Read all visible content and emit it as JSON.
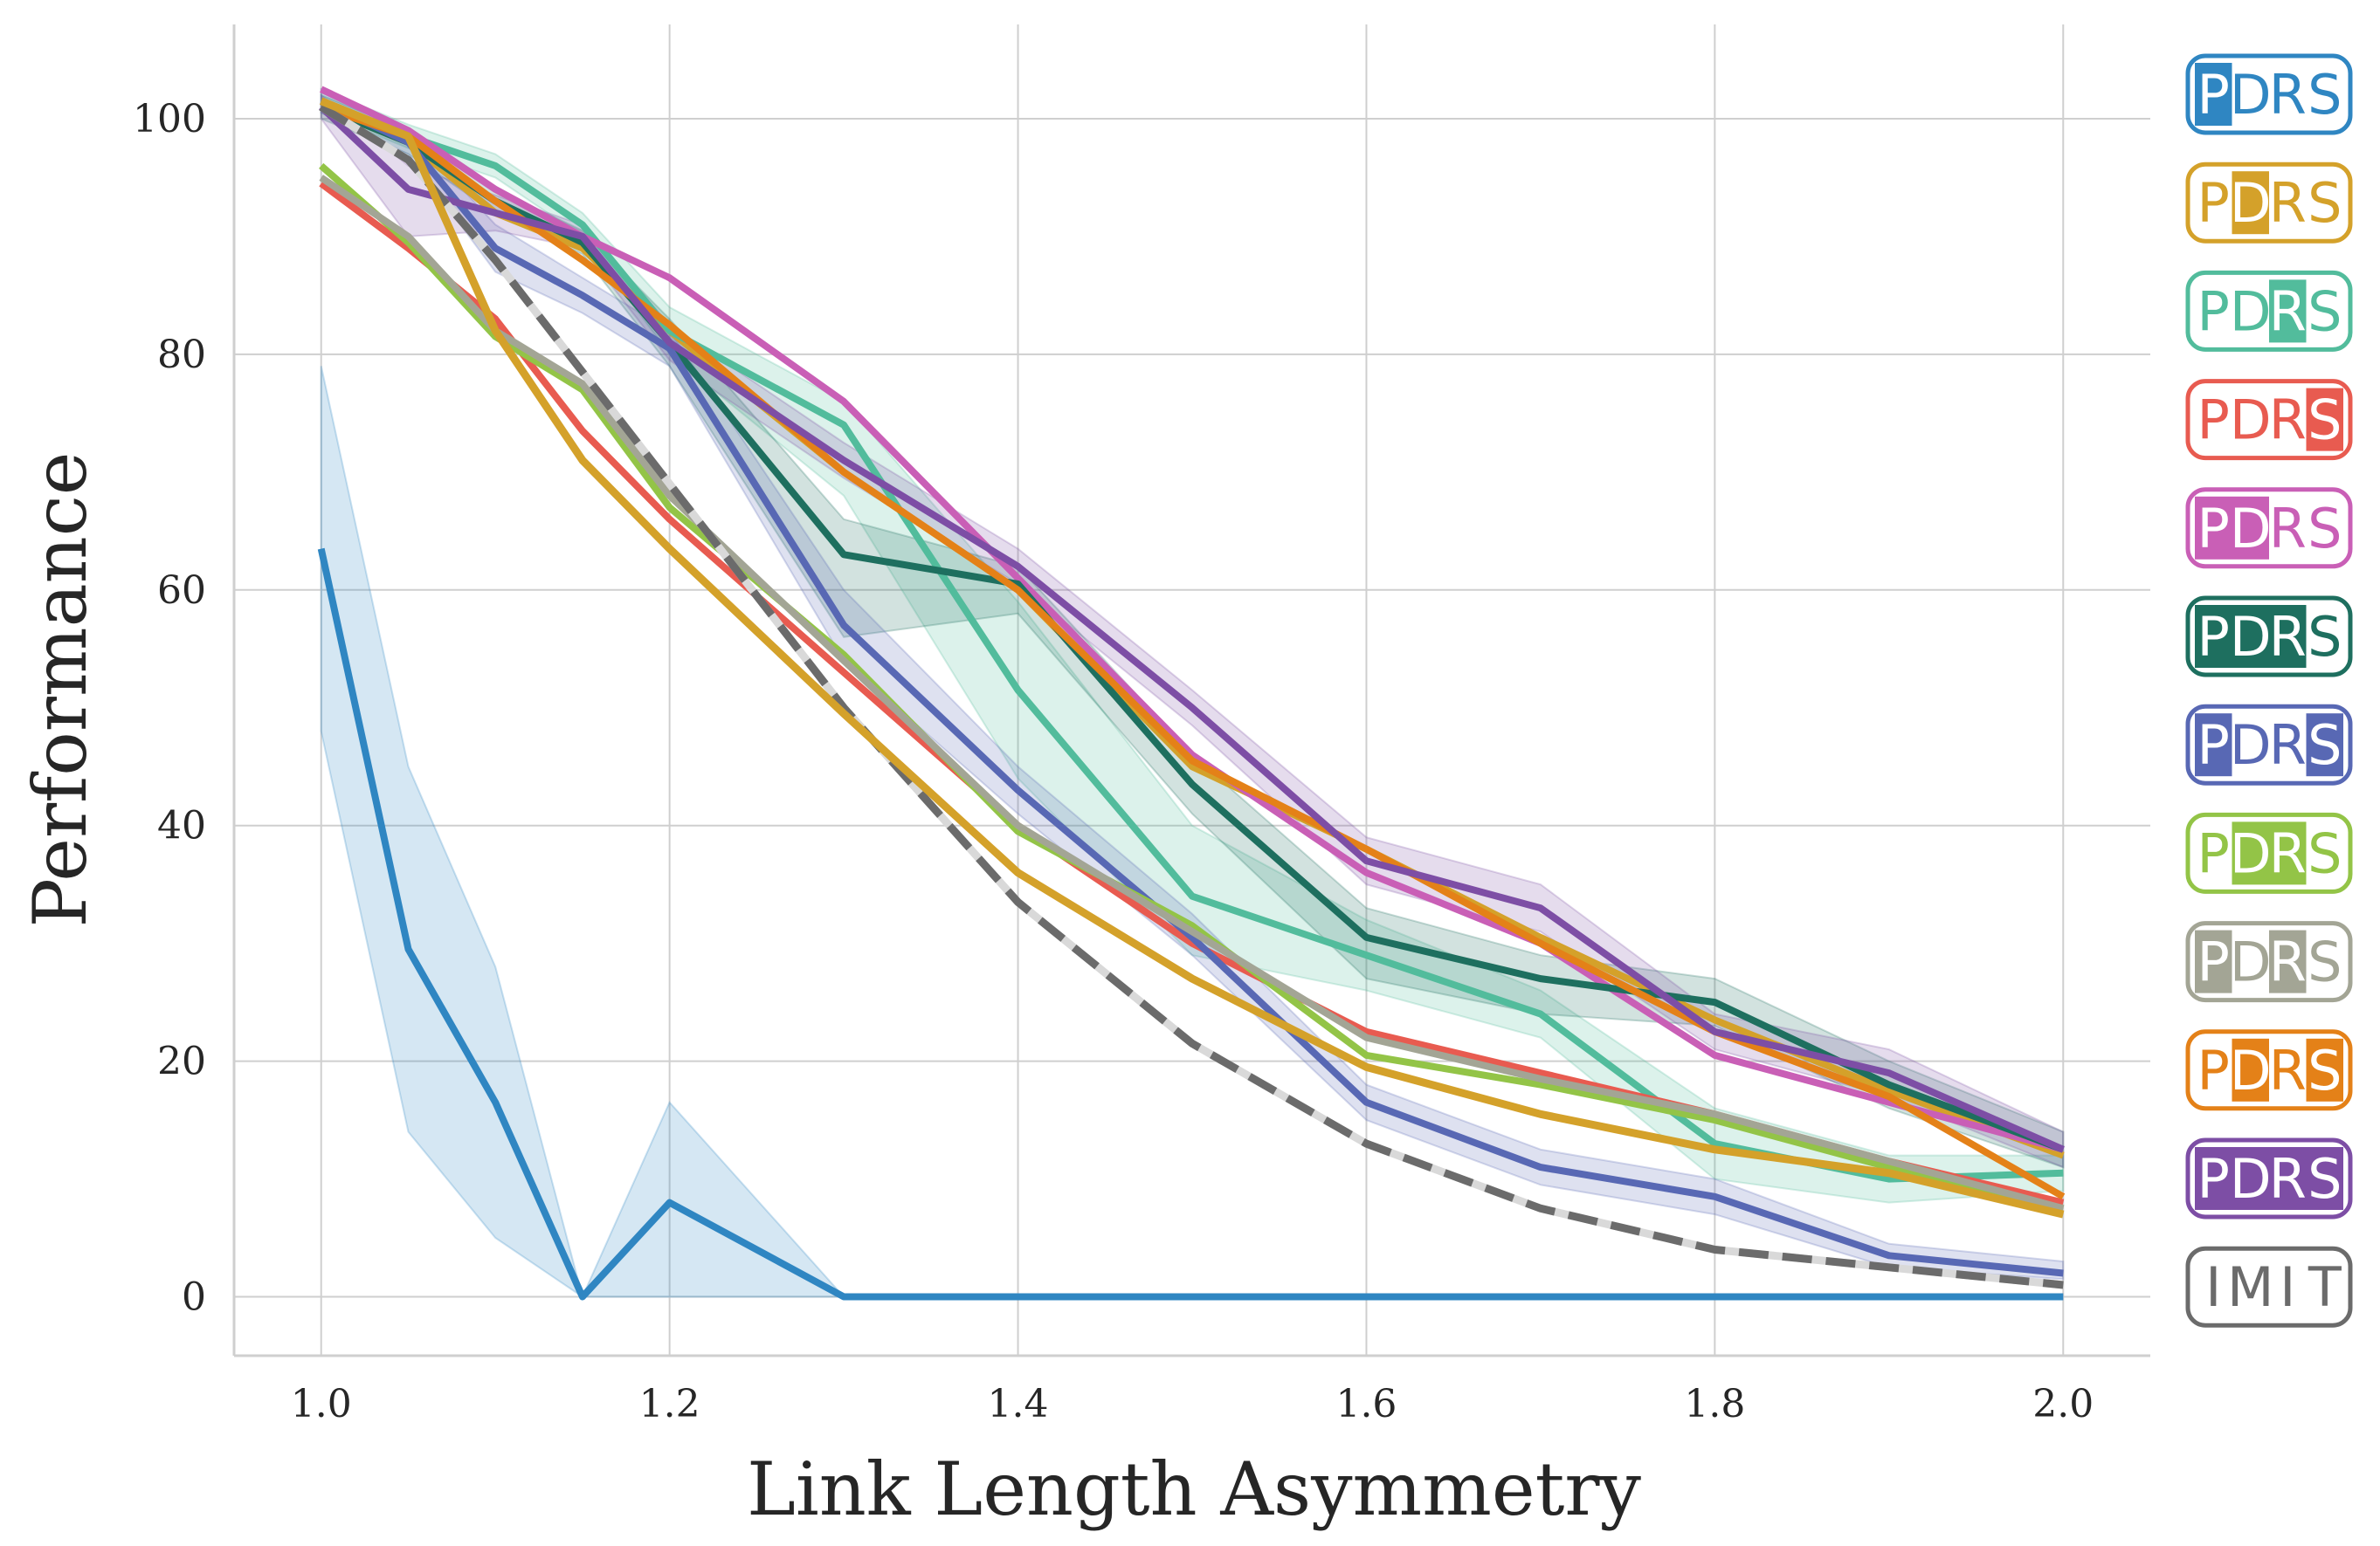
{
  "chart_data": {
    "type": "line",
    "xlabel": "Link Length Asymmetry",
    "ylabel": "Performance",
    "xlim": [
      0.95,
      2.05
    ],
    "ylim": [
      -5,
      108
    ],
    "x_ticks": [
      "1.0",
      "1.2",
      "1.4",
      "1.6",
      "1.8",
      "2.0"
    ],
    "y_ticks": [
      "0",
      "20",
      "40",
      "60",
      "80",
      "100"
    ],
    "x": [
      1.0,
      1.05,
      1.1,
      1.15,
      1.2,
      1.3,
      1.4,
      1.5,
      1.6,
      1.7,
      1.8,
      1.9,
      2.0
    ],
    "series": [
      {
        "name": "PDRS",
        "highlight": [
          0
        ],
        "color": "#2f86c2",
        "values": [
          63.5,
          29.5,
          16.5,
          0,
          8,
          0,
          0,
          0,
          0,
          0,
          0,
          0,
          0
        ],
        "band": [
          [
            48,
            79
          ],
          [
            14,
            45
          ],
          [
            5,
            28
          ],
          [
            0,
            0
          ],
          [
            0,
            16.5
          ],
          [
            0,
            0
          ],
          [
            0,
            0
          ],
          [
            0,
            0
          ],
          [
            0,
            0
          ],
          [
            0,
            0
          ],
          [
            0,
            0
          ],
          [
            0,
            0
          ],
          [
            0,
            0
          ]
        ]
      },
      {
        "name": "PDRS",
        "highlight": [
          1
        ],
        "color": "#d4a12a",
        "values": [
          101,
          98,
          92,
          89,
          82,
          70,
          60,
          45,
          38,
          30.5,
          23.5,
          17.5,
          12
        ]
      },
      {
        "name": "PDRS",
        "highlight": [
          2
        ],
        "color": "#52bc9c",
        "values": [
          101.5,
          98.5,
          96,
          91,
          82,
          74,
          51.5,
          34,
          29,
          24,
          13,
          10,
          10.5
        ],
        "band": [
          [
            100.5,
            102.5
          ],
          [
            97.5,
            99.5
          ],
          [
            95,
            97
          ],
          [
            90,
            92
          ],
          [
            80,
            84
          ],
          [
            68,
            76
          ],
          [
            44,
            59
          ],
          [
            29,
            40
          ],
          [
            26,
            32
          ],
          [
            22,
            26
          ],
          [
            10,
            16
          ],
          [
            8,
            12
          ],
          [
            9,
            12
          ]
        ]
      },
      {
        "name": "PDRS",
        "highlight": [
          3
        ],
        "color": "#e85b50",
        "values": [
          94.5,
          89,
          83,
          73.5,
          66,
          53,
          40,
          30,
          22.5,
          19,
          15.5,
          11.5,
          8
        ]
      },
      {
        "name": "PDRS",
        "highlight": [
          0,
          1
        ],
        "color": "#c95fb6",
        "values": [
          102.5,
          99,
          94,
          90,
          86.5,
          76,
          61,
          46,
          36,
          30,
          20.5,
          16.5,
          12.5
        ]
      },
      {
        "name": "PDRS",
        "highlight": [
          0,
          1,
          2
        ],
        "color": "#1e6f5f",
        "values": [
          101,
          98,
          93,
          89.5,
          81,
          63,
          60.5,
          43.5,
          30.5,
          27,
          25,
          18,
          12.5
        ],
        "band": [
          [
            100,
            102
          ],
          [
            97,
            99
          ],
          [
            92,
            94
          ],
          [
            88.5,
            90.5
          ],
          [
            79,
            83
          ],
          [
            56,
            66
          ],
          [
            58,
            62
          ],
          [
            41,
            46
          ],
          [
            27,
            33
          ],
          [
            24,
            29
          ],
          [
            23,
            27
          ],
          [
            16,
            20
          ],
          [
            11,
            14
          ]
        ]
      },
      {
        "name": "PDRS",
        "highlight": [
          0,
          3
        ],
        "color": "#5868b4",
        "values": [
          101.5,
          98,
          89,
          85,
          80.5,
          57,
          43,
          30.5,
          16.5,
          11,
          8.5,
          3.5,
          2
        ],
        "band": [
          [
            100.5,
            102.5
          ],
          [
            97,
            99
          ],
          [
            87,
            91
          ],
          [
            83.5,
            86.5
          ],
          [
            79,
            82
          ],
          [
            54,
            60
          ],
          [
            41,
            45
          ],
          [
            29,
            32.5
          ],
          [
            15,
            18
          ],
          [
            9.5,
            12.5
          ],
          [
            7,
            10
          ],
          [
            2.5,
            4.5
          ],
          [
            1.5,
            3
          ]
        ]
      },
      {
        "name": "PDRS",
        "highlight": [
          1,
          2
        ],
        "color": "#93c447",
        "values": [
          96,
          89.5,
          81.5,
          77,
          67,
          54.5,
          39.5,
          31.5,
          20.5,
          18,
          15,
          11,
          7.5
        ]
      },
      {
        "name": "PDRS",
        "highlight": [
          0,
          2
        ],
        "color": "#a3a595",
        "values": [
          95,
          90,
          82,
          77.5,
          68,
          54,
          40,
          31,
          22,
          18.5,
          15.5,
          11.5,
          7.5
        ]
      },
      {
        "name": "PDRS",
        "highlight": [
          1,
          3
        ],
        "color": "#e48118",
        "values": [
          101,
          98.5,
          93,
          88,
          82.5,
          70,
          60,
          45.5,
          38,
          30,
          22.5,
          17,
          8.5
        ]
      },
      {
        "name": "PDRS",
        "highlight": [
          0,
          1,
          2,
          3
        ],
        "color": "#7d4ea5",
        "values": [
          101,
          94,
          92,
          90,
          81,
          71,
          62,
          50,
          37,
          33,
          22.5,
          19,
          12.5
        ],
        "band": [
          [
            100,
            102
          ],
          [
            90,
            96
          ],
          [
            90.5,
            93.5
          ],
          [
            89,
            91
          ],
          [
            79.5,
            82.5
          ],
          [
            69.5,
            72.5
          ],
          [
            60.5,
            63.5
          ],
          [
            48.5,
            51.5
          ],
          [
            35,
            39
          ],
          [
            31,
            35
          ],
          [
            21,
            24
          ],
          [
            17,
            21
          ],
          [
            11,
            14
          ]
        ]
      },
      {
        "name": "IMIT",
        "highlight": [],
        "color": "#6b6b6b",
        "dashed": true,
        "values": [
          101,
          96.5,
          88,
          78.5,
          69,
          50,
          33.5,
          21.5,
          13,
          7.5,
          4,
          2.5,
          1
        ]
      },
      {
        "name": "PDRS",
        "highlight": [
          0,
          1
        ],
        "color": "#d4a12a",
        "thick": true,
        "values": [
          101.5,
          98.5,
          82,
          71,
          63.5,
          49.5,
          36,
          27,
          19.5,
          15.5,
          12.5,
          10.5,
          7
        ]
      }
    ],
    "legend": {
      "placement": "right",
      "entries": [
        {
          "label": "PDRS",
          "color": "#2f86c2",
          "highlight": [
            0
          ]
        },
        {
          "label": "PDRS",
          "color": "#d4a12a",
          "highlight": [
            1
          ]
        },
        {
          "label": "PDRS",
          "color": "#52bc9c",
          "highlight": [
            2
          ]
        },
        {
          "label": "PDRS",
          "color": "#e85b50",
          "highlight": [
            3
          ]
        },
        {
          "label": "PDRS",
          "color": "#c95fb6",
          "highlight": [
            0,
            1
          ]
        },
        {
          "label": "PDRS",
          "color": "#1e6f5f",
          "highlight": [
            0,
            1,
            2
          ]
        },
        {
          "label": "PDRS",
          "color": "#5868b4",
          "highlight": [
            0,
            3
          ]
        },
        {
          "label": "PDRS",
          "color": "#93c447",
          "highlight": [
            1,
            2
          ]
        },
        {
          "label": "PDRS",
          "color": "#a3a595",
          "highlight": [
            0,
            2
          ]
        },
        {
          "label": "PDRS",
          "color": "#e48118",
          "highlight": [
            1,
            3
          ]
        },
        {
          "label": "PDRS",
          "color": "#7d4ea5",
          "highlight": [
            0,
            1,
            2,
            3
          ]
        },
        {
          "label": "IMIT",
          "color": "#6b6b6b",
          "highlight": []
        }
      ]
    }
  }
}
